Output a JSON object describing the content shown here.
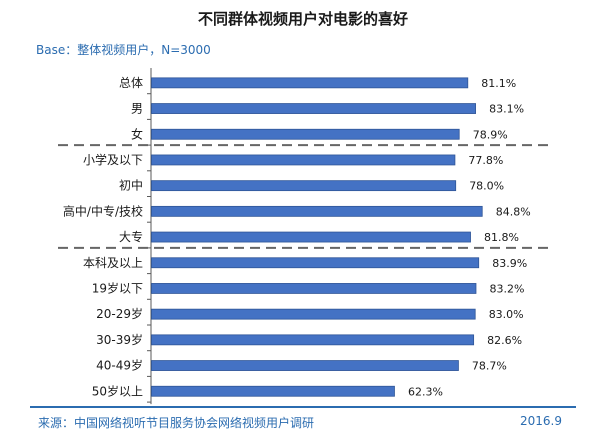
{
  "title": "不同群体视频用户对电影的喜好",
  "base_label": "Base：整体视频用户，N=3000",
  "source": "来源：中国网络视听节目服务协会网络视频用户调研",
  "date": "2016.9",
  "colors": {
    "bar": "#4472c4",
    "bar_border": "#2f5597",
    "accent": "#2b6cb0",
    "divider": "#666666"
  },
  "chart_data": {
    "type": "bar",
    "orientation": "horizontal",
    "categories": [
      "总体",
      "男",
      "女",
      "小学及以下",
      "初中",
      "高中/中专/技校",
      "大专",
      "本科及以上",
      "19岁以下",
      "20-29岁",
      "30-39岁",
      "40-49岁",
      "50岁以上"
    ],
    "values": [
      81.1,
      83.1,
      78.9,
      77.8,
      78.0,
      84.8,
      81.8,
      83.9,
      83.2,
      83.0,
      82.6,
      78.7,
      62.3
    ],
    "data_labels": [
      "81.1%",
      "83.1%",
      "78.9%",
      "77.8%",
      "78.0%",
      "84.8%",
      "81.8%",
      "83.9%",
      "83.2%",
      "83.0%",
      "82.6%",
      "78.7%",
      "62.3%"
    ],
    "group_dividers_after_index": [
      2,
      6
    ],
    "grid": false,
    "legend": "none"
  }
}
